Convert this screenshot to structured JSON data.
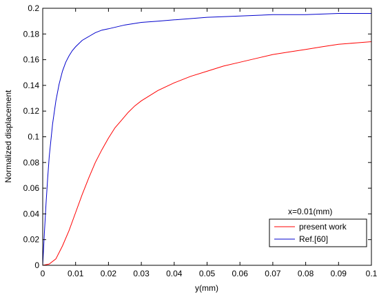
{
  "chart_data": {
    "type": "line",
    "xlabel": "y(mm)",
    "ylabel": "Normalized displacement",
    "xlim": [
      0,
      0.1
    ],
    "ylim": [
      0,
      0.2
    ],
    "x_ticks": [
      "0",
      "0.01",
      "0.02",
      "0.03",
      "0.04",
      "0.05",
      "0.06",
      "0.07",
      "0.08",
      "0.09",
      "0.1"
    ],
    "y_ticks": [
      "0",
      "0.02",
      "0.04",
      "0.06",
      "0.08",
      "0.1",
      "0.12",
      "0.14",
      "0.16",
      "0.18",
      "0.2"
    ],
    "grid": false,
    "legend": {
      "title": "x=0.01(mm)",
      "placement": "bottom-right"
    },
    "series": [
      {
        "name": "present work",
        "color": "#ff0000",
        "points": [
          [
            0,
            0
          ],
          [
            0.002,
            0.001
          ],
          [
            0.004,
            0.005
          ],
          [
            0.006,
            0.015
          ],
          [
            0.008,
            0.027
          ],
          [
            0.01,
            0.041
          ],
          [
            0.012,
            0.055
          ],
          [
            0.014,
            0.068
          ],
          [
            0.016,
            0.08
          ],
          [
            0.018,
            0.09
          ],
          [
            0.02,
            0.099
          ],
          [
            0.022,
            0.107
          ],
          [
            0.024,
            0.113
          ],
          [
            0.026,
            0.119
          ],
          [
            0.028,
            0.124
          ],
          [
            0.03,
            0.128
          ],
          [
            0.035,
            0.136
          ],
          [
            0.04,
            0.142
          ],
          [
            0.045,
            0.147
          ],
          [
            0.05,
            0.151
          ],
          [
            0.055,
            0.155
          ],
          [
            0.06,
            0.158
          ],
          [
            0.065,
            0.161
          ],
          [
            0.07,
            0.164
          ],
          [
            0.075,
            0.166
          ],
          [
            0.08,
            0.168
          ],
          [
            0.085,
            0.17
          ],
          [
            0.09,
            0.172
          ],
          [
            0.095,
            0.173
          ],
          [
            0.1,
            0.174
          ]
        ]
      },
      {
        "name": "Ref.[60]",
        "color": "#0000cc",
        "points": [
          [
            0,
            0
          ],
          [
            0.0005,
            0.025
          ],
          [
            0.001,
            0.048
          ],
          [
            0.0015,
            0.068
          ],
          [
            0.002,
            0.085
          ],
          [
            0.003,
            0.11
          ],
          [
            0.004,
            0.128
          ],
          [
            0.005,
            0.141
          ],
          [
            0.006,
            0.151
          ],
          [
            0.007,
            0.158
          ],
          [
            0.008,
            0.163
          ],
          [
            0.009,
            0.167
          ],
          [
            0.01,
            0.17
          ],
          [
            0.012,
            0.175
          ],
          [
            0.014,
            0.178
          ],
          [
            0.016,
            0.181
          ],
          [
            0.018,
            0.183
          ],
          [
            0.02,
            0.184
          ],
          [
            0.025,
            0.187
          ],
          [
            0.03,
            0.189
          ],
          [
            0.035,
            0.19
          ],
          [
            0.04,
            0.191
          ],
          [
            0.05,
            0.193
          ],
          [
            0.06,
            0.194
          ],
          [
            0.07,
            0.195
          ],
          [
            0.08,
            0.195
          ],
          [
            0.09,
            0.196
          ],
          [
            0.1,
            0.196
          ]
        ]
      }
    ]
  }
}
